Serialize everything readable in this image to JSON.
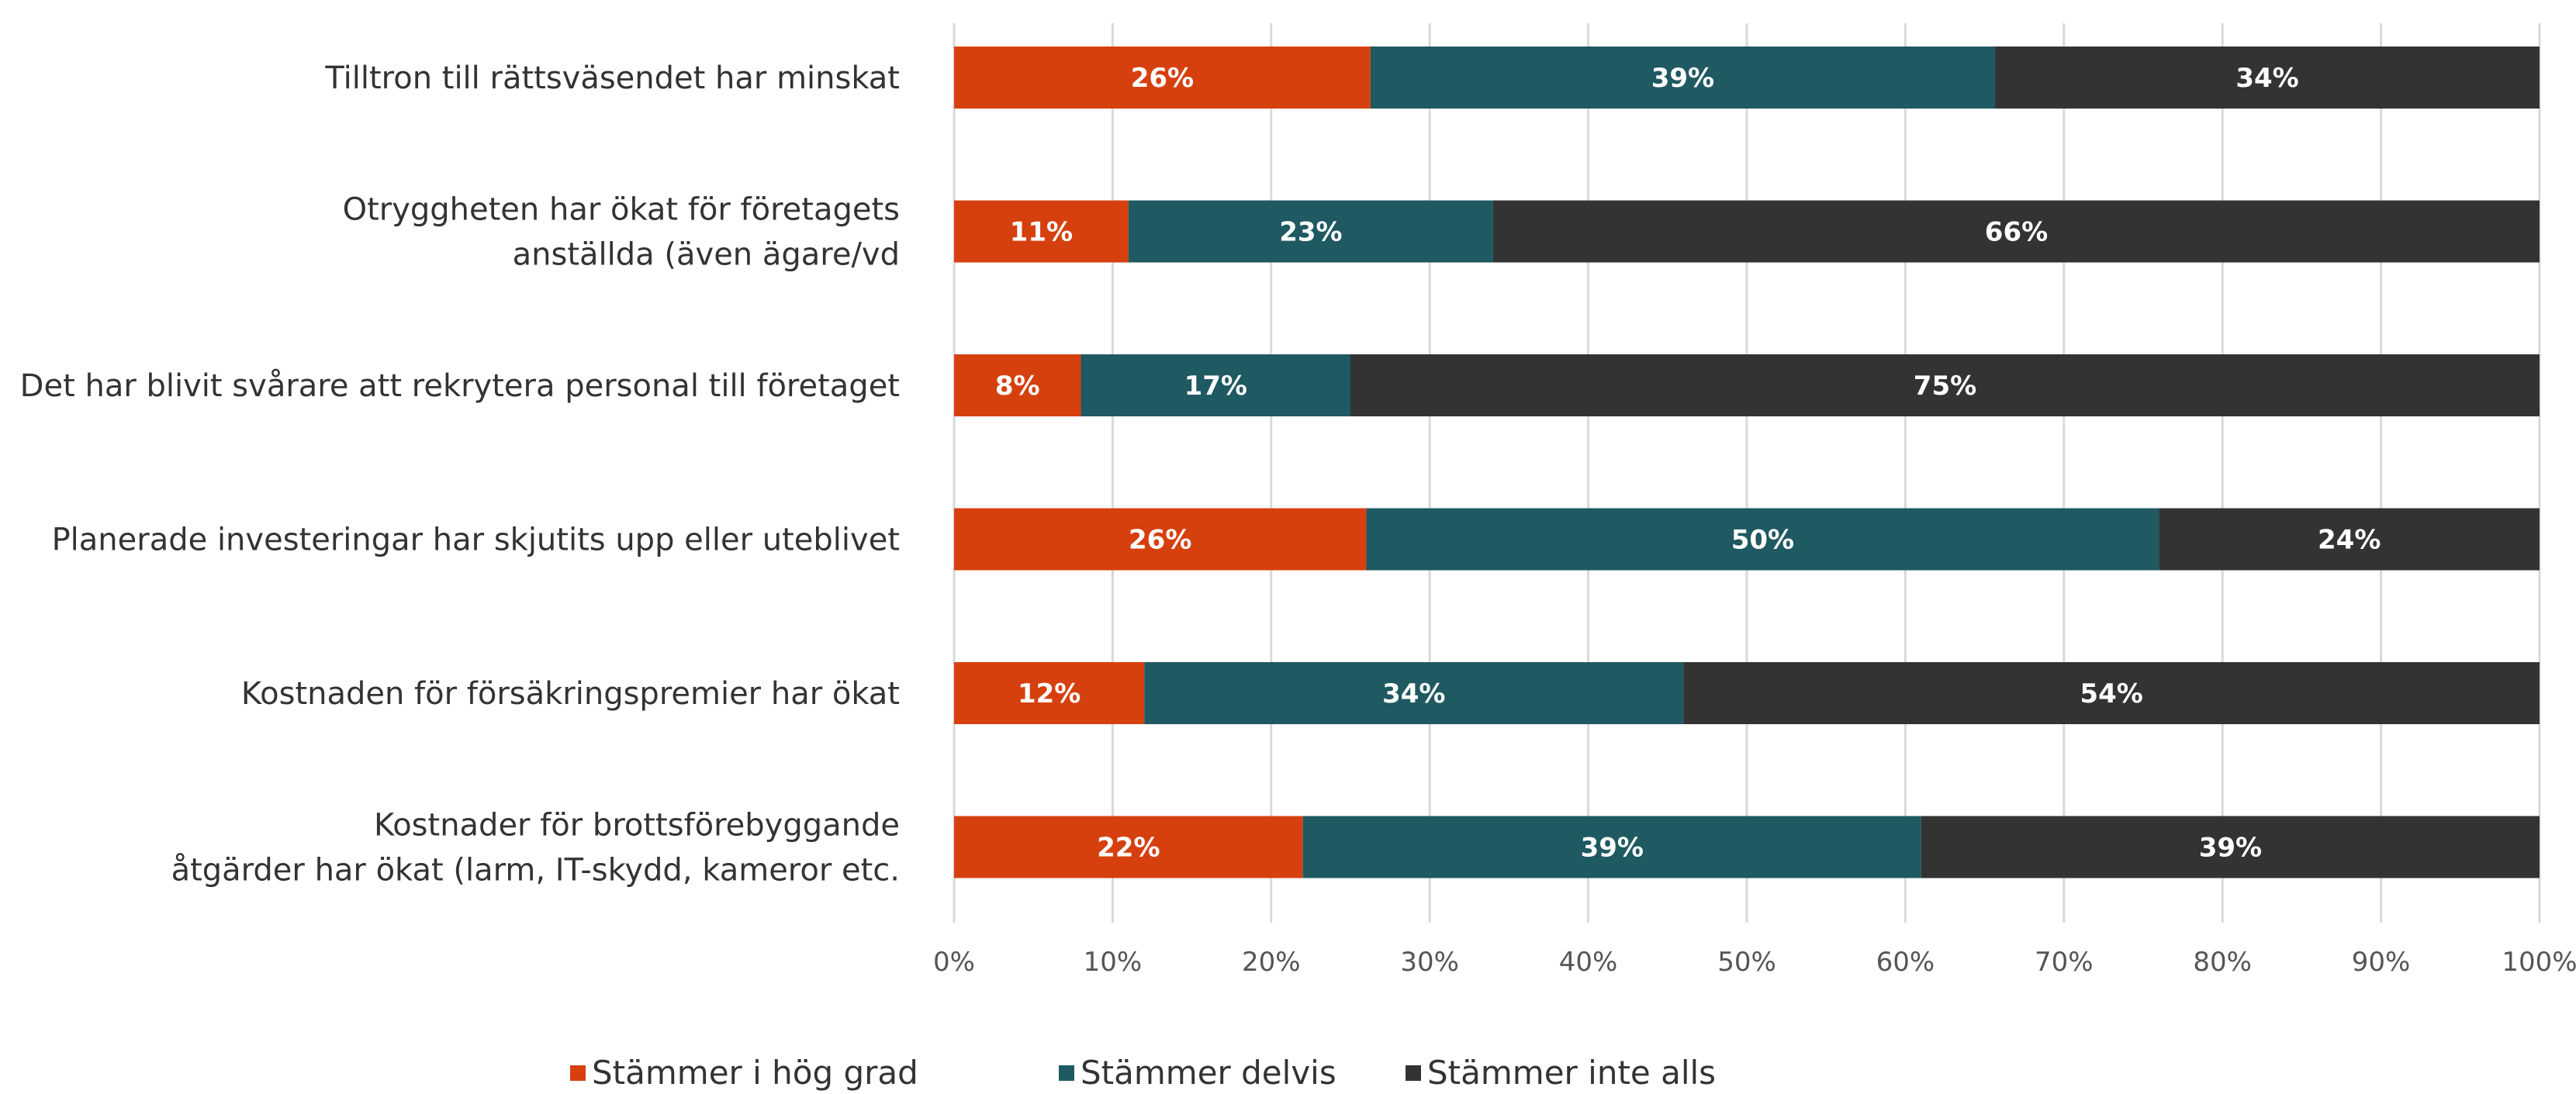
{
  "chart_data": {
    "type": "bar",
    "orientation": "horizontal",
    "stacked": "percent",
    "title": "",
    "xlabel": "",
    "ylabel": "",
    "categories": [
      [
        "Tilltron till rättsväsendet har minskat"
      ],
      [
        "Otryggheten har ökat för företagets",
        "anställda (även ägare/vd"
      ],
      [
        "Det har blivit svårare att rekrytera personal till företaget"
      ],
      [
        "Planerade investeringar har skjutits upp eller uteblivet"
      ],
      [
        "Kostnaden för försäkringspremier har ökat"
      ],
      [
        "Kostnader för brottsförebyggande",
        "åtgärder har ökat (larm, IT-skydd, kameror etc."
      ]
    ],
    "series": [
      {
        "name": "Stämmer i hög grad",
        "color": "#d6400f",
        "values": [
          26,
          11,
          8,
          26,
          12,
          22
        ]
      },
      {
        "name": "Stämmer delvis",
        "color": "#1f5961",
        "values": [
          39,
          23,
          17,
          50,
          34,
          39
        ]
      },
      {
        "name": "Stämmer inte alls",
        "color": "#333333",
        "values": [
          34,
          66,
          75,
          24,
          54,
          39
        ]
      }
    ],
    "value_suffix": "%",
    "xlim": [
      0,
      100
    ],
    "x_ticks": [
      "0%",
      "10%",
      "20%",
      "30%",
      "40%",
      "50%",
      "60%",
      "70%",
      "80%",
      "90%",
      "100%"
    ],
    "grid": "vertical",
    "legend_position": "bottom"
  }
}
